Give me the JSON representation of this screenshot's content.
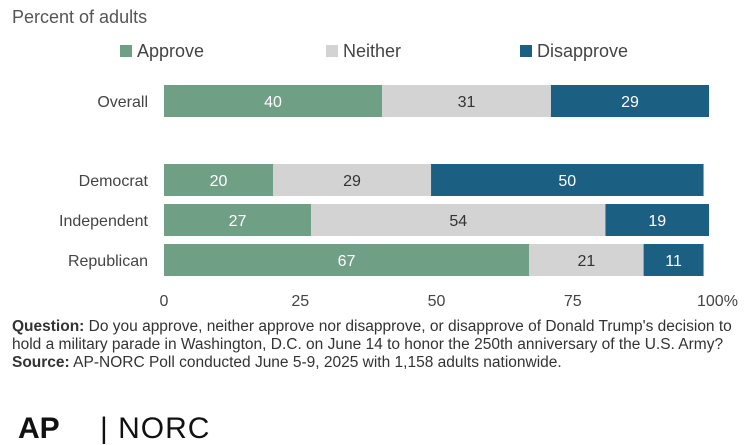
{
  "chart_data": {
    "type": "bar",
    "orientation": "horizontal",
    "stacked": true,
    "subtitle": "Percent of adults",
    "categories": [
      "Overall",
      "Democrat",
      "Independent",
      "Republican"
    ],
    "series": [
      {
        "name": "Approve",
        "color": "#6f9f84",
        "values": [
          40,
          20,
          27,
          67
        ]
      },
      {
        "name": "Neither",
        "color": "#d3d3d3",
        "values": [
          31,
          29,
          54,
          21
        ]
      },
      {
        "name": "Disapprove",
        "color": "#1b5f82",
        "values": [
          29,
          50,
          19,
          11
        ]
      }
    ],
    "x_ticks": [
      "0",
      "25",
      "50",
      "75",
      "100%"
    ],
    "xlim": [
      0,
      100
    ],
    "legend_position": "top",
    "grid": false
  },
  "notes": {
    "question_label": "Question:",
    "question_text": " Do you approve, neither approve nor disapprove, or disapprove of Donald Trump's decision to hold a military parade in Washington, D.C. on June 14 to honor the 250th anniversary of the U.S. Army?",
    "source_label": "Source:",
    "source_text": " AP-NORC Poll conducted June 5-9, 2025 with 1,158 adults nationwide."
  },
  "logos": {
    "ap": "AP",
    "norc": "| NORC"
  }
}
